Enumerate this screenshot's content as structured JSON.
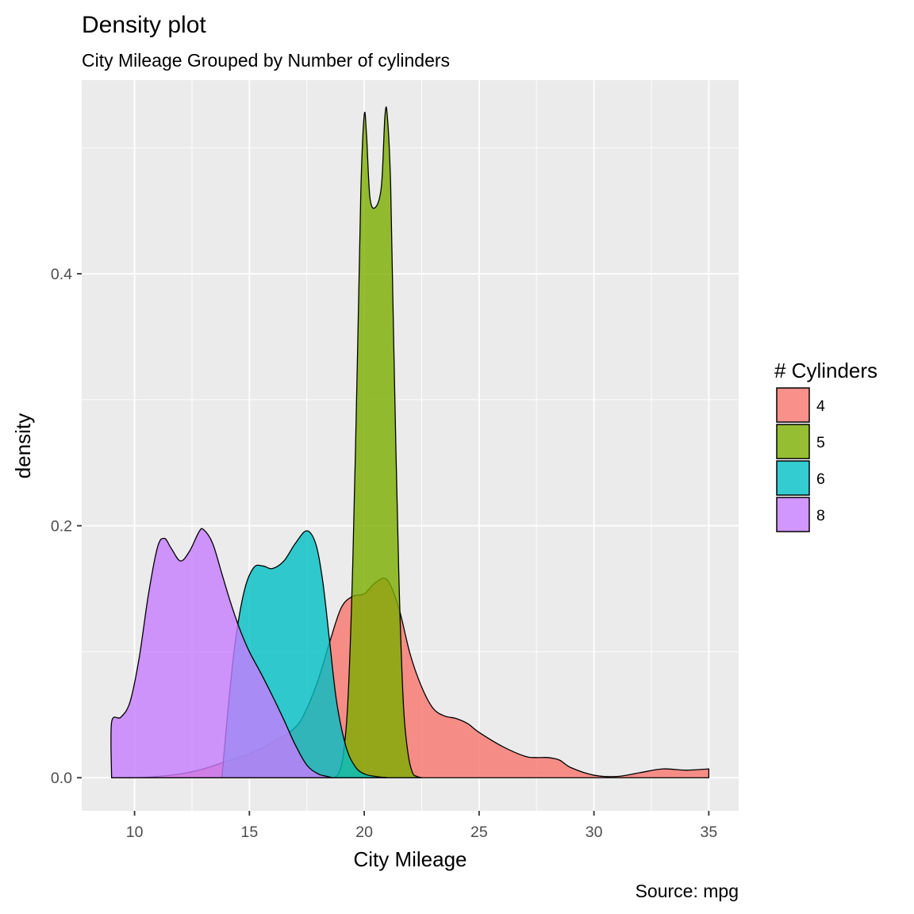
{
  "chart_data": {
    "type": "area",
    "title": "Density plot",
    "subtitle": "City Mileage Grouped by Number of cylinders",
    "caption": "Source: mpg",
    "xlabel": "City Mileage",
    "ylabel": "density",
    "xlim": [
      7.7,
      36.3
    ],
    "ylim": [
      -0.0263,
      0.5537
    ],
    "x_ticks": [
      10,
      15,
      20,
      25,
      30,
      35
    ],
    "x_tick_labels": [
      "10",
      "15",
      "20",
      "25",
      "30",
      "35"
    ],
    "y_ticks": [
      0.0,
      0.2,
      0.4
    ],
    "y_tick_labels": [
      "0.0",
      "0.2",
      "0.4"
    ],
    "grid": true,
    "legend": {
      "title": "# Cylinders",
      "position": "right"
    },
    "series": [
      {
        "name": "4",
        "color": "#F8766D",
        "points": [
          [
            9,
            0
          ],
          [
            10,
            0
          ],
          [
            11,
            0.001
          ],
          [
            12,
            0.003
          ],
          [
            13,
            0.007
          ],
          [
            14,
            0.013
          ],
          [
            15,
            0.019
          ],
          [
            16,
            0.028
          ],
          [
            17,
            0.04
          ],
          [
            17.5,
            0.055
          ],
          [
            18,
            0.078
          ],
          [
            18.5,
            0.108
          ],
          [
            19,
            0.135
          ],
          [
            19.5,
            0.144
          ],
          [
            20,
            0.146
          ],
          [
            20.5,
            0.155
          ],
          [
            21,
            0.157
          ],
          [
            21.5,
            0.135
          ],
          [
            22,
            0.098
          ],
          [
            22.5,
            0.072
          ],
          [
            23,
            0.055
          ],
          [
            23.5,
            0.049
          ],
          [
            24,
            0.047
          ],
          [
            24.5,
            0.043
          ],
          [
            25,
            0.036
          ],
          [
            26,
            0.025
          ],
          [
            27,
            0.017
          ],
          [
            27.5,
            0.016
          ],
          [
            28,
            0.016
          ],
          [
            28.5,
            0.014
          ],
          [
            29,
            0.008
          ],
          [
            30,
            0.002
          ],
          [
            31,
            0.001
          ],
          [
            32,
            0.004
          ],
          [
            33,
            0.007
          ],
          [
            34,
            0.006
          ],
          [
            35,
            0.007
          ]
        ]
      },
      {
        "name": "5",
        "color": "#7CAE00",
        "points": [
          [
            18.7,
            0
          ],
          [
            18.9,
            0.004
          ],
          [
            19.1,
            0.02
          ],
          [
            19.3,
            0.065
          ],
          [
            19.5,
            0.17
          ],
          [
            19.7,
            0.33
          ],
          [
            19.85,
            0.465
          ],
          [
            20.0,
            0.526
          ],
          [
            20.1,
            0.51
          ],
          [
            20.25,
            0.46
          ],
          [
            20.5,
            0.453
          ],
          [
            20.75,
            0.47
          ],
          [
            20.9,
            0.525
          ],
          [
            21.0,
            0.526
          ],
          [
            21.15,
            0.47
          ],
          [
            21.3,
            0.33
          ],
          [
            21.5,
            0.165
          ],
          [
            21.7,
            0.06
          ],
          [
            21.9,
            0.02
          ],
          [
            22.1,
            0.004
          ],
          [
            22.3,
            0.001
          ],
          [
            22.5,
            0
          ]
        ]
      },
      {
        "name": "6",
        "color": "#00BFC4",
        "points": [
          [
            13.8,
            0
          ],
          [
            14.1,
            0.06
          ],
          [
            14.4,
            0.11
          ],
          [
            14.8,
            0.15
          ],
          [
            15.2,
            0.167
          ],
          [
            15.6,
            0.168
          ],
          [
            16.0,
            0.166
          ],
          [
            16.5,
            0.172
          ],
          [
            17.0,
            0.186
          ],
          [
            17.5,
            0.196
          ],
          [
            17.9,
            0.185
          ],
          [
            18.2,
            0.155
          ],
          [
            18.5,
            0.107
          ],
          [
            18.8,
            0.06
          ],
          [
            19.2,
            0.025
          ],
          [
            19.6,
            0.009
          ],
          [
            20.0,
            0.003
          ],
          [
            20.5,
            0.001
          ],
          [
            21,
            0
          ]
        ]
      },
      {
        "name": "8",
        "color": "#C77CFF",
        "points": [
          [
            9,
            0
          ],
          [
            9,
            0.044
          ],
          [
            9.4,
            0.048
          ],
          [
            9.8,
            0.06
          ],
          [
            10.2,
            0.095
          ],
          [
            10.6,
            0.145
          ],
          [
            11.0,
            0.183
          ],
          [
            11.3,
            0.19
          ],
          [
            11.6,
            0.182
          ],
          [
            12.0,
            0.172
          ],
          [
            12.4,
            0.18
          ],
          [
            12.8,
            0.195
          ],
          [
            13.0,
            0.197
          ],
          [
            13.4,
            0.186
          ],
          [
            13.8,
            0.162
          ],
          [
            14.2,
            0.138
          ],
          [
            14.6,
            0.117
          ],
          [
            15.0,
            0.1
          ],
          [
            15.5,
            0.083
          ],
          [
            16.0,
            0.065
          ],
          [
            16.5,
            0.046
          ],
          [
            17.0,
            0.026
          ],
          [
            17.5,
            0.01
          ],
          [
            18.0,
            0.003
          ],
          [
            18.4,
            0.001
          ],
          [
            18.6,
            0
          ]
        ]
      }
    ]
  }
}
